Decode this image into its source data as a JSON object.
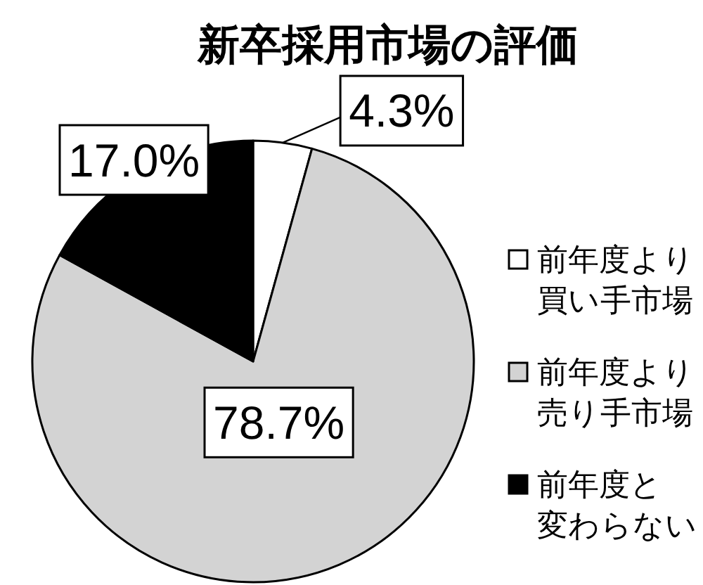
{
  "chart_data": {
    "type": "pie",
    "title": "新卒採用市場の評価",
    "categories": [
      "前年度より買い手市場",
      "前年度より売り手市場",
      "前年度と変わらない"
    ],
    "values": [
      4.3,
      78.7,
      17.0
    ],
    "colors": [
      "#ffffff",
      "#d3d3d3",
      "#000000"
    ],
    "value_labels": [
      "4.3%",
      "78.7%",
      "17.0%"
    ],
    "legend": "right"
  }
}
